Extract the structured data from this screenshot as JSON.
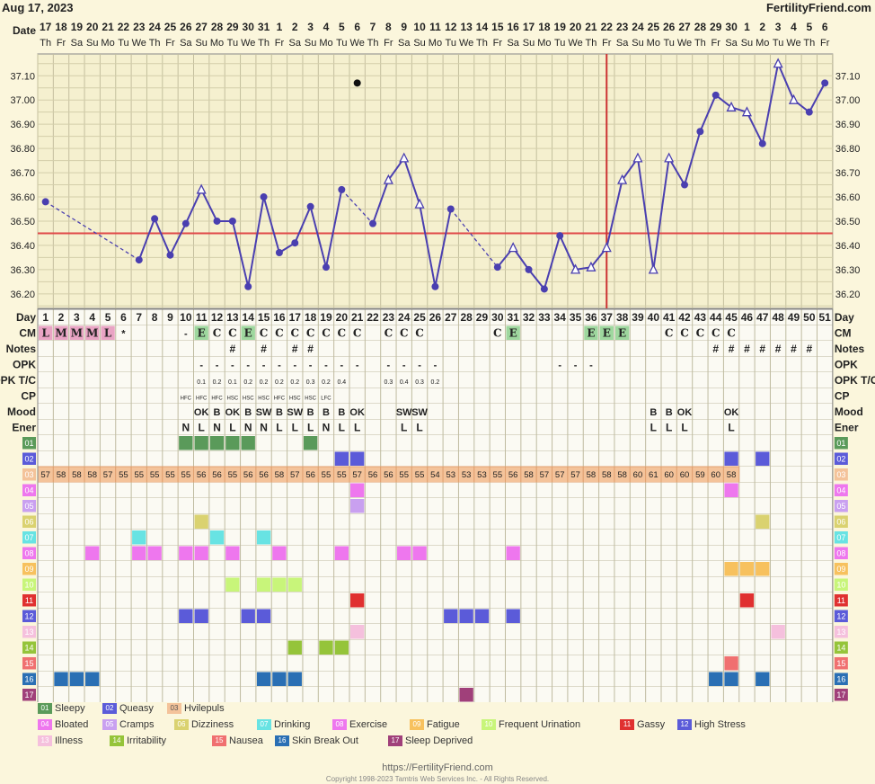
{
  "header": {
    "date": "Aug 17, 2023",
    "site": "FertilityFriend.com"
  },
  "chart_data": {
    "type": "line",
    "ylim": [
      36.14,
      37.19
    ],
    "yticks": [
      "37.10",
      "37.00",
      "36.90",
      "36.80",
      "36.70",
      "36.60",
      "36.50",
      "36.40",
      "36.30",
      "36.20"
    ],
    "coverline": 36.45,
    "ovulation_day": 37,
    "dates": [
      "17",
      "18",
      "19",
      "20",
      "21",
      "22",
      "23",
      "24",
      "25",
      "26",
      "27",
      "28",
      "29",
      "30",
      "31",
      "1",
      "2",
      "3",
      "4",
      "5",
      "6",
      "7",
      "8",
      "9",
      "10",
      "11",
      "12",
      "13",
      "14",
      "15",
      "16",
      "17",
      "18",
      "19",
      "20",
      "21",
      "22",
      "23",
      "24",
      "25",
      "26",
      "27",
      "28",
      "29",
      "30",
      "1",
      "2",
      "3",
      "4",
      "5",
      "6"
    ],
    "weekdays": [
      "Th",
      "Fr",
      "Sa",
      "Su",
      "Mo",
      "Tu",
      "We",
      "Th",
      "Fr",
      "Sa",
      "Su",
      "Mo",
      "Tu",
      "We",
      "Th",
      "Fr",
      "Sa",
      "Su",
      "Mo",
      "Tu",
      "We",
      "Th",
      "Fr",
      "Sa",
      "Su",
      "Mo",
      "Tu",
      "We",
      "Th",
      "Fr",
      "Sa",
      "Su",
      "Mo",
      "Tu",
      "We",
      "Th",
      "Fr",
      "Sa",
      "Su",
      "Mo",
      "Tu",
      "We",
      "Th",
      "Fr",
      "Sa",
      "Su",
      "Mo",
      "Tu",
      "We",
      "Th",
      "Fr"
    ],
    "temps": [
      36.58,
      null,
      null,
      null,
      null,
      null,
      36.34,
      36.51,
      36.36,
      36.49,
      36.63,
      36.5,
      36.5,
      36.23,
      36.6,
      36.37,
      36.41,
      36.56,
      36.31,
      36.63,
      null,
      36.49,
      36.67,
      36.76,
      36.57,
      36.23,
      36.55,
      null,
      null,
      36.31,
      36.39,
      36.3,
      36.22,
      36.44,
      36.3,
      36.31,
      36.39,
      36.67,
      36.76,
      36.3,
      36.76,
      36.65,
      36.87,
      37.02,
      36.97,
      36.95,
      36.82,
      37.15,
      37.0,
      36.95,
      37.07
    ],
    "markers": [
      "c",
      "",
      "",
      "",
      "",
      "",
      "c",
      "c",
      "c",
      "c",
      "t",
      "c",
      "c",
      "c",
      "c",
      "c",
      "c",
      "c",
      "c",
      "c",
      "",
      "c",
      "t",
      "t",
      "t",
      "c",
      "c",
      "",
      "",
      "c",
      "t",
      "c",
      "c",
      "c",
      "t",
      "t",
      "t",
      "t",
      "t",
      "t",
      "t",
      "c",
      "c",
      "c",
      "t",
      "t",
      "c",
      "t",
      "t",
      "c",
      "c"
    ],
    "excluded": [
      {
        "day": 21,
        "temp": 37.07
      }
    ],
    "rows": {
      "cm": [
        "L",
        "M",
        "M",
        "M",
        "L",
        "",
        "",
        "",
        "",
        "",
        "E",
        "C",
        "C",
        "E",
        "C",
        "C",
        "C",
        "C",
        "C",
        "C",
        "C",
        "",
        "C",
        "C",
        "C",
        "",
        "",
        "",
        "",
        "C",
        "E",
        "",
        "",
        "",
        "",
        "E",
        "E",
        "E",
        "",
        "",
        "C",
        "C",
        "C",
        "C",
        "C",
        "",
        "",
        "",
        "",
        "",
        ""
      ],
      "cm_extra": {
        "6": "*",
        "10": "-"
      },
      "notes": [
        "",
        "",
        "",
        "",
        "",
        "",
        "",
        "",
        "",
        "",
        "",
        "",
        "#",
        "",
        "#",
        "",
        "#",
        "#",
        "",
        "",
        "",
        "",
        "",
        "",
        "",
        "",
        "",
        "",
        "",
        "",
        "",
        "",
        "",
        "",
        "",
        "",
        "",
        "",
        "",
        "",
        "",
        "",
        "",
        "#",
        "#",
        "#",
        "#",
        "#",
        "#",
        "#",
        ""
      ],
      "opk": [
        "",
        "",
        "",
        "",
        "",
        "",
        "",
        "",
        "",
        "",
        "-",
        "-",
        "-",
        "-",
        "-",
        "-",
        "-",
        "-",
        "-",
        "-",
        "-",
        "",
        "-",
        "-",
        "-",
        "-",
        "",
        "",
        "",
        "",
        "",
        "",
        "",
        "-",
        "-",
        "-",
        "",
        "",
        "",
        "",
        "",
        "",
        "",
        "",
        "",
        "",
        "",
        "",
        "",
        "",
        ""
      ],
      "opk_tc": [
        "",
        "",
        "",
        "",
        "",
        "",
        "",
        "",
        "",
        "",
        "0.1",
        "0.2",
        "0.1",
        "0.2",
        "0.2",
        "0.2",
        "0.2",
        "0.3",
        "0.2",
        "0.4",
        "",
        "",
        "0.3",
        "0.4",
        "0.3",
        "0.2",
        "",
        "",
        "",
        "",
        "",
        "",
        "",
        "",
        "",
        "",
        "",
        "",
        "",
        "",
        "",
        "",
        "",
        "",
        "",
        "",
        "",
        "",
        "",
        "",
        ""
      ],
      "cp": [
        "",
        "",
        "",
        "",
        "",
        "",
        "",
        "",
        "",
        "HFC",
        "HFC",
        "HFC",
        "HSC",
        "HSC",
        "HSC",
        "HFC",
        "HSC",
        "HSC",
        "LFC",
        "",
        "",
        "",
        "",
        "",
        "",
        "",
        "",
        "",
        "",
        "",
        "",
        "",
        "",
        "",
        "",
        "",
        "",
        "",
        "",
        "",
        "",
        "",
        "",
        "",
        "",
        "",
        "",
        "",
        "",
        "",
        ""
      ],
      "mood": [
        "",
        "",
        "",
        "",
        "",
        "",
        "",
        "",
        "",
        "",
        "OK",
        "B",
        "OK",
        "B",
        "SW",
        "B",
        "SW",
        "B",
        "B",
        "B",
        "OK",
        "",
        "",
        "SW",
        "SW",
        "",
        "",
        "",
        "",
        "",
        "",
        "",
        "",
        "",
        "",
        "",
        "",
        "",
        "",
        "B",
        "B",
        "OK",
        "",
        "",
        "OK",
        "",
        "",
        "",
        "",
        "",
        ""
      ],
      "ener": [
        "",
        "",
        "",
        "",
        "",
        "",
        "",
        "",
        "",
        "N",
        "L",
        "N",
        "L",
        "N",
        "N",
        "L",
        "L",
        "L",
        "N",
        "L",
        "L",
        "",
        "",
        "L",
        "L",
        "",
        "",
        "",
        "",
        "",
        "",
        "",
        "",
        "",
        "",
        "",
        "",
        "",
        "",
        "L",
        "L",
        "L",
        "",
        "",
        "L",
        "",
        "",
        "",
        "",
        "",
        ""
      ]
    },
    "symptoms": [
      {
        "id": "01",
        "color": "#5a9a5a",
        "days": [
          10,
          11,
          12,
          13,
          14,
          18
        ]
      },
      {
        "id": "02",
        "color": "#5b5bd9",
        "days": [
          20,
          21,
          45,
          47
        ]
      },
      {
        "id": "03",
        "color": "#f4c39a",
        "values": [
          57,
          58,
          58,
          58,
          57,
          55,
          55,
          55,
          55,
          55,
          56,
          56,
          55,
          56,
          56,
          58,
          57,
          56,
          55,
          55,
          57,
          56,
          56,
          55,
          55,
          54,
          53,
          53,
          53,
          55,
          56,
          58,
          57,
          57,
          57,
          58,
          58,
          58,
          60,
          61,
          60,
          60,
          59,
          60,
          58,
          null,
          null,
          null,
          null,
          null,
          null
        ]
      },
      {
        "id": "04",
        "color": "#ee77ee",
        "days": [
          21,
          45
        ]
      },
      {
        "id": "05",
        "color": "#c9a0f0",
        "days": [
          21
        ]
      },
      {
        "id": "06",
        "color": "#dad270",
        "days": [
          11,
          47
        ]
      },
      {
        "id": "07",
        "color": "#68e3e3",
        "days": [
          7,
          12,
          15
        ]
      },
      {
        "id": "08",
        "color": "#ee77ee",
        "days": [
          4,
          7,
          8,
          10,
          11,
          13,
          16,
          20,
          24,
          25,
          31
        ]
      },
      {
        "id": "09",
        "color": "#f7c15e",
        "days": [
          45,
          46,
          47
        ]
      },
      {
        "id": "10",
        "color": "#c8f57a",
        "days": [
          13,
          15,
          16,
          17
        ]
      },
      {
        "id": "11",
        "color": "#e03030",
        "days": [
          21,
          46
        ]
      },
      {
        "id": "12",
        "color": "#5b5bd9",
        "days": [
          10,
          11,
          14,
          15,
          27,
          28,
          29,
          31
        ]
      },
      {
        "id": "13",
        "color": "#f5c0dd",
        "days": [
          21,
          48
        ]
      },
      {
        "id": "14",
        "color": "#95c43a",
        "days": [
          17,
          19,
          20
        ]
      },
      {
        "id": "15",
        "color": "#f07070",
        "days": [
          45
        ]
      },
      {
        "id": "16",
        "color": "#2a6fb4",
        "days": [
          2,
          3,
          4,
          15,
          16,
          17,
          44,
          45,
          47
        ]
      },
      {
        "id": "17",
        "color": "#a0407a",
        "days": [
          28
        ]
      }
    ]
  },
  "labels": {
    "date": "Date",
    "day": "Day",
    "cm": "CM",
    "notes": "Notes",
    "opk": "OPK",
    "opk_tc": "OPK T/C",
    "cp": "CP",
    "mood": "Mood",
    "ener": "Ener"
  },
  "legend": [
    {
      "id": "01",
      "label": "Sleepy"
    },
    {
      "id": "02",
      "label": "Queasy"
    },
    {
      "id": "03",
      "label": "Hvilepuls"
    },
    {
      "id": "04",
      "label": "Bloated"
    },
    {
      "id": "05",
      "label": "Cramps"
    },
    {
      "id": "06",
      "label": "Dizziness"
    },
    {
      "id": "07",
      "label": "Drinking"
    },
    {
      "id": "08",
      "label": "Exercise"
    },
    {
      "id": "09",
      "label": "Fatigue"
    },
    {
      "id": "10",
      "label": "Frequent Urination"
    },
    {
      "id": "11",
      "label": "Gassy"
    },
    {
      "id": "12",
      "label": "High Stress"
    },
    {
      "id": "13",
      "label": "Illness"
    },
    {
      "id": "14",
      "label": "Irritability"
    },
    {
      "id": "15",
      "label": "Nausea"
    },
    {
      "id": "16",
      "label": "Skin Break Out"
    },
    {
      "id": "17",
      "label": "Sleep Deprived"
    }
  ],
  "footer": {
    "url": "https://FertilityFriend.com",
    "copyright": "Copyright 1998-2023 Tamtris Web Services Inc. - All Rights Reserved."
  }
}
